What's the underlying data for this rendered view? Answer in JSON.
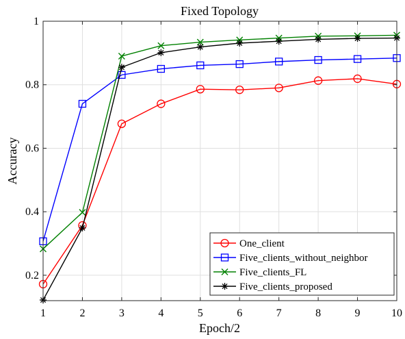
{
  "chart_data": {
    "type": "line",
    "title": "Fixed Topology",
    "xlabel": "Epoch/2",
    "ylabel": "Accuracy",
    "x": [
      1,
      2,
      3,
      4,
      5,
      6,
      7,
      8,
      9,
      10
    ],
    "xlim": [
      1,
      10
    ],
    "ylim": [
      0.12,
      1.0
    ],
    "xticks": [
      "1",
      "2",
      "3",
      "4",
      "5",
      "6",
      "7",
      "8",
      "9",
      "10"
    ],
    "yticks": [
      {
        "value": 0.2,
        "label": "0.2"
      },
      {
        "value": 0.4,
        "label": "0.4"
      },
      {
        "value": 0.6,
        "label": "0.6"
      },
      {
        "value": 0.8,
        "label": "0.8"
      },
      {
        "value": 1.0,
        "label": "1"
      }
    ],
    "grid": true,
    "legend_position": "bottom-right",
    "series": [
      {
        "name": "One_client",
        "color": "#ff0000",
        "marker": "circle",
        "values": [
          0.172,
          0.357,
          0.677,
          0.74,
          0.786,
          0.784,
          0.79,
          0.813,
          0.819,
          0.802
        ]
      },
      {
        "name": "Five_clients_without_neighbor",
        "color": "#0000ff",
        "marker": "square",
        "values": [
          0.307,
          0.74,
          0.831,
          0.85,
          0.861,
          0.865,
          0.873,
          0.878,
          0.881,
          0.884
        ]
      },
      {
        "name": "Five_clients_FL",
        "color": "#008000",
        "marker": "x",
        "values": [
          0.283,
          0.398,
          0.89,
          0.923,
          0.934,
          0.941,
          0.947,
          0.953,
          0.954,
          0.956
        ]
      },
      {
        "name": "Five_clients_proposed",
        "color": "#000000",
        "marker": "star",
        "values": [
          0.122,
          0.349,
          0.855,
          0.901,
          0.919,
          0.931,
          0.937,
          0.943,
          0.946,
          0.947
        ]
      }
    ]
  }
}
